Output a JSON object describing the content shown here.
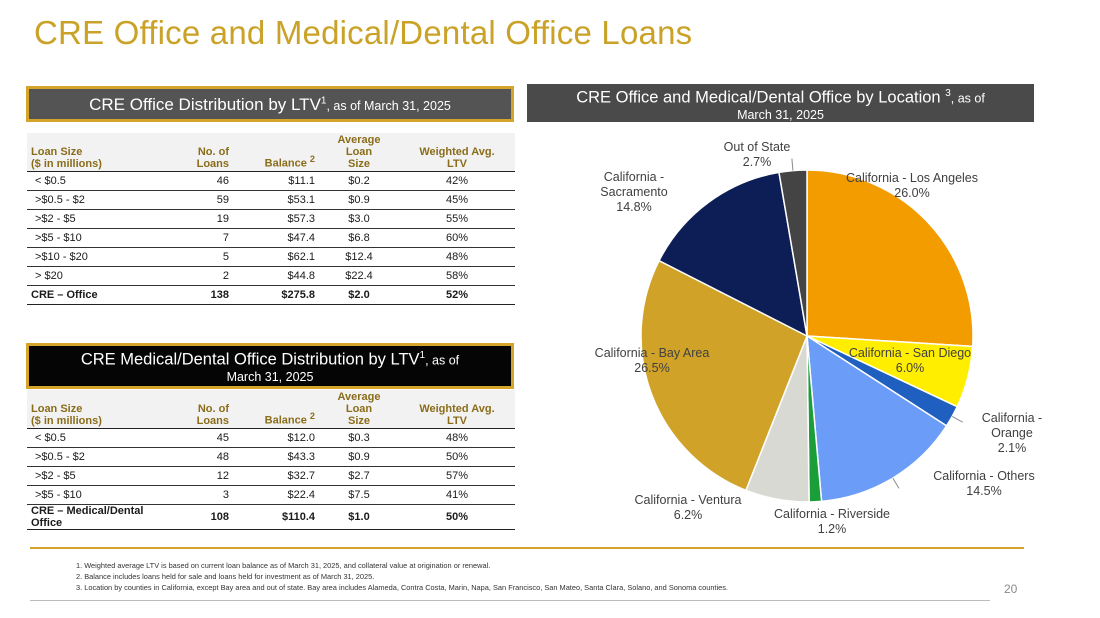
{
  "title": "CRE Office and Medical/Dental Office Loans",
  "office_header": {
    "title": "CRE Office Distribution by LTV",
    "sup": "1",
    "date": ", as of March 31, 2025"
  },
  "location_header": {
    "title": "CRE Office and Medical/Dental Office by Location ",
    "sup": "3",
    "date": ", as of",
    "date2": "March 31, 2025"
  },
  "medical_header": {
    "title": "CRE Medical/Dental Office Distribution by LTV",
    "sup": "1",
    "date": ", as of",
    "date2": "March 31, 2025"
  },
  "table_columns": {
    "loan_size_1": "Loan Size",
    "loan_size_2": "($ in millions)",
    "num_1": "No. of",
    "num_2": "Loans",
    "balance": "Balance",
    "balance_sup": "2",
    "avg_1": "Average Loan",
    "avg_2": "Size",
    "wavg_1": "Weighted Avg.",
    "wavg_2": "LTV"
  },
  "office_rows": [
    {
      "size": "< $0.5",
      "loans": "46",
      "balance": "$11.1",
      "avg": "$0.2",
      "ltv": "42%"
    },
    {
      "size": ">$0.5 - $2",
      "loans": "59",
      "balance": "$53.1",
      "avg": "$0.9",
      "ltv": "45%"
    },
    {
      "size": ">$2 - $5",
      "loans": "19",
      "balance": "$57.3",
      "avg": "$3.0",
      "ltv": "55%"
    },
    {
      "size": ">$5 - $10",
      "loans": "7",
      "balance": "$47.4",
      "avg": "$6.8",
      "ltv": "60%"
    },
    {
      "size": ">$10 - $20",
      "loans": "5",
      "balance": "$62.1",
      "avg": "$12.4",
      "ltv": "48%"
    },
    {
      "size": "> $20",
      "loans": "2",
      "balance": "$44.8",
      "avg": "$22.4",
      "ltv": "58%"
    }
  ],
  "office_total": {
    "size": "CRE – Office",
    "loans": "138",
    "balance": "$275.8",
    "avg": "$2.0",
    "ltv": "52%"
  },
  "medical_rows": [
    {
      "size": "< $0.5",
      "loans": "45",
      "balance": "$12.0",
      "avg": "$0.3",
      "ltv": "48%"
    },
    {
      "size": ">$0.5 - $2",
      "loans": "48",
      "balance": "$43.3",
      "avg": "$0.9",
      "ltv": "50%"
    },
    {
      "size": ">$2 - $5",
      "loans": "12",
      "balance": "$32.7",
      "avg": "$2.7",
      "ltv": "57%"
    },
    {
      "size": ">$5 - $10",
      "loans": "3",
      "balance": "$22.4",
      "avg": "$7.5",
      "ltv": "41%"
    }
  ],
  "medical_total": {
    "size": "CRE – Medical/Dental Office",
    "loans": "108",
    "balance": "$110.4",
    "avg": "$1.0",
    "ltv": "50%"
  },
  "chart_data": {
    "type": "pie",
    "title": "CRE Office and Medical/Dental Office by Location 3, as of March 31, 2025",
    "slices": [
      {
        "label": "California - Los Angeles",
        "value": 26.0,
        "display": "26.0%",
        "color": "#f39c00"
      },
      {
        "label": "California - San Diego",
        "value": 6.0,
        "display": "6.0%",
        "color": "#ffee00"
      },
      {
        "label": "California - Orange",
        "value": 2.1,
        "display": "2.1%",
        "color": "#1f5fbf"
      },
      {
        "label": "California - Others",
        "value": 14.5,
        "display": "14.5%",
        "color": "#6b9cf7"
      },
      {
        "label": "California - Riverside",
        "value": 1.2,
        "display": "1.2%",
        "color": "#1a9e3a"
      },
      {
        "label": "California - Ventura",
        "value": 6.2,
        "display": "6.2%",
        "color": "#d9d9d4"
      },
      {
        "label": "California - Bay Area",
        "value": 26.5,
        "display": "26.5%",
        "color": "#d0a228"
      },
      {
        "label": "California - Sacramento",
        "value": 14.8,
        "display": "14.8%",
        "color": "#0c1e55"
      },
      {
        "label": "Out of State",
        "value": 2.7,
        "display": "2.7%",
        "color": "#444444"
      }
    ]
  },
  "footnotes": [
    "1. Weighted average LTV is based on current loan balance as of March 31, 2025, and collateral value at origination or renewal.",
    "2. Balance includes loans held for sale and loans held for investment as of March 31, 2025.",
    "3. Location by counties in California, except Bay area and out of state. Bay area includes Alameda, Contra Costa, Marin, Napa, San Francisco, San Mateo, Santa Clara, Solano, and Sonoma counties."
  ],
  "page_number": "20"
}
